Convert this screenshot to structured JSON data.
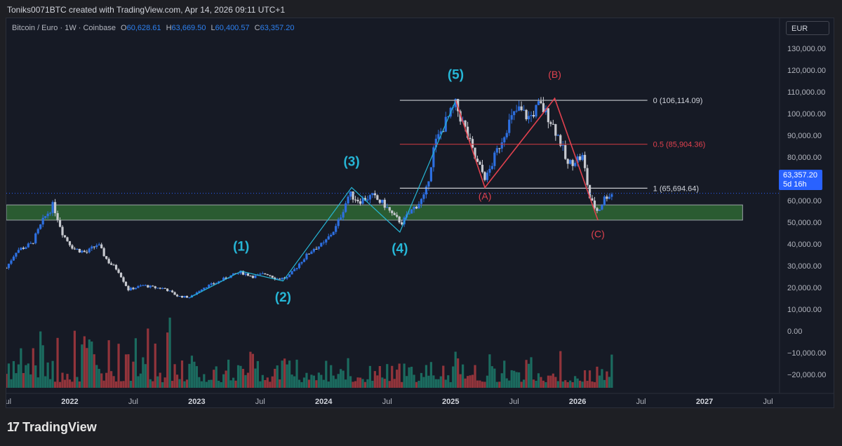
{
  "header": {
    "credit": "Toniks0071BTC created with TradingView.com, Apr 14, 2026 09:11 UTC+1"
  },
  "legend": {
    "symbol": "Bitcoin / Euro · 1W · Coinbase",
    "o_label": "O",
    "o": "60,628.61",
    "h_label": "H",
    "h": "63,669.50",
    "l_label": "L",
    "l": "60,400.57",
    "c_label": "C",
    "c": "63,357.20"
  },
  "currency": "EUR",
  "price_tag": {
    "price": "63,357.20",
    "countdown": "5d 16h"
  },
  "footer": {
    "brand": "TradingView",
    "logo": "17"
  },
  "colors": {
    "up": "#2d6fe0",
    "down": "#c7c9cf",
    "wave": "#26b6d6",
    "corr": "#e0414e",
    "zone": "#2f6b35",
    "vol_up": "#1c7a6a",
    "vol_down": "#a83a3f"
  },
  "chart_data": {
    "type": "candlestick",
    "title": "Bitcoin / Euro · 1W · Coinbase",
    "y_ticks": [
      130000,
      120000,
      110000,
      100000,
      90000,
      80000,
      70000,
      60000,
      50000,
      40000,
      30000,
      20000,
      10000,
      0,
      -10000,
      -20000
    ],
    "y_tick_labels": [
      "130,000.00",
      "120,000.00",
      "110,000.00",
      "100,000.00",
      "90,000.00",
      "80,000.00",
      "70,000.00",
      "60,000.00",
      "50,000.00",
      "40,000.00",
      "30,000.00",
      "20,000.00",
      "10,000.00",
      "0.00",
      "−10,000.00",
      "−20,000.00"
    ],
    "ylim": [
      -25000,
      135000
    ],
    "x_ticks": [
      {
        "label": "Jul",
        "t": 2021.5
      },
      {
        "label": "2022",
        "t": 2022.0
      },
      {
        "label": "Jul",
        "t": 2022.5
      },
      {
        "label": "2023",
        "t": 2023.0
      },
      {
        "label": "Jul",
        "t": 2023.5
      },
      {
        "label": "2024",
        "t": 2024.0
      },
      {
        "label": "Jul",
        "t": 2024.5
      },
      {
        "label": "2025",
        "t": 2025.0
      },
      {
        "label": "Jul",
        "t": 2025.5
      },
      {
        "label": "2026",
        "t": 2026.0
      },
      {
        "label": "Jul",
        "t": 2026.5
      },
      {
        "label": "2027",
        "t": 2027.0
      },
      {
        "label": "Jul",
        "t": 2027.5
      }
    ],
    "xlim": [
      2021.5,
      2027.58
    ],
    "price_path": [
      [
        2021.5,
        29000
      ],
      [
        2021.58,
        37000
      ],
      [
        2021.7,
        40000
      ],
      [
        2021.8,
        52000
      ],
      [
        2021.87,
        58000
      ],
      [
        2021.95,
        44000
      ],
      [
        2022.03,
        38000
      ],
      [
        2022.13,
        36000
      ],
      [
        2022.22,
        40000
      ],
      [
        2022.3,
        32000
      ],
      [
        2022.38,
        28000
      ],
      [
        2022.46,
        19000
      ],
      [
        2022.58,
        21000
      ],
      [
        2022.66,
        20000
      ],
      [
        2022.75,
        19500
      ],
      [
        2022.85,
        16000
      ],
      [
        2022.95,
        15500
      ],
      [
        2023.05,
        20000
      ],
      [
        2023.15,
        22000
      ],
      [
        2023.25,
        25000
      ],
      [
        2023.35,
        27000
      ],
      [
        2023.45,
        25000
      ],
      [
        2023.55,
        26500
      ],
      [
        2023.63,
        24000
      ],
      [
        2023.72,
        24500
      ],
      [
        2023.82,
        32000
      ],
      [
        2023.92,
        38000
      ],
      [
        2024.0,
        40000
      ],
      [
        2024.1,
        48000
      ],
      [
        2024.2,
        63000
      ],
      [
        2024.28,
        60000
      ],
      [
        2024.38,
        62000
      ],
      [
        2024.48,
        58000
      ],
      [
        2024.56,
        52000
      ],
      [
        2024.62,
        50000
      ],
      [
        2024.7,
        56000
      ],
      [
        2024.8,
        62000
      ],
      [
        2024.87,
        85000
      ],
      [
        2024.95,
        95000
      ],
      [
        2025.04,
        104000
      ],
      [
        2025.12,
        92000
      ],
      [
        2025.2,
        78000
      ],
      [
        2025.28,
        70000
      ],
      [
        2025.36,
        82000
      ],
      [
        2025.45,
        95000
      ],
      [
        2025.53,
        102000
      ],
      [
        2025.62,
        98000
      ],
      [
        2025.7,
        104000
      ],
      [
        2025.78,
        98000
      ],
      [
        2025.86,
        88000
      ],
      [
        2025.92,
        76000
      ],
      [
        2025.98,
        79000
      ],
      [
        2026.04,
        80000
      ],
      [
        2026.1,
        60000
      ],
      [
        2026.16,
        55000
      ],
      [
        2026.22,
        62000
      ],
      [
        2026.28,
        63357
      ]
    ],
    "support_zone": {
      "from_t": 2021.5,
      "to_t": 2027.3,
      "low": 51000,
      "high": 58000
    },
    "fib_levels": [
      {
        "label": "0 (106,114.09)",
        "value": 106114.09,
        "from_t": 2024.6,
        "to_t": 2026.55
      },
      {
        "label": "0.5 (85,904.36)",
        "value": 85904.36,
        "from_t": 2024.6,
        "to_t": 2026.55
      },
      {
        "label": "1 (65,694.64)",
        "value": 65694.64,
        "from_t": 2024.6,
        "to_t": 2026.55
      }
    ],
    "current_price": 63357.2,
    "impulse_wave": [
      [
        2022.95,
        15500
      ],
      [
        2023.35,
        27500
      ],
      [
        2023.68,
        23000
      ],
      [
        2024.22,
        66000
      ],
      [
        2024.6,
        45500
      ],
      [
        2025.04,
        106000
      ]
    ],
    "impulse_labels": [
      {
        "text": "(1)",
        "t": 2023.35,
        "v": 37000
      },
      {
        "text": "(2)",
        "t": 2023.68,
        "v": 13500
      },
      {
        "text": "(3)",
        "t": 2024.22,
        "v": 76000
      },
      {
        "text": "(4)",
        "t": 2024.6,
        "v": 36000
      },
      {
        "text": "(5)",
        "t": 2025.04,
        "v": 116000
      }
    ],
    "correction_wave": [
      [
        2025.04,
        106000
      ],
      [
        2025.27,
        66000
      ],
      [
        2025.82,
        107000
      ],
      [
        2026.16,
        51000
      ]
    ],
    "correction_labels": [
      {
        "text": "(A)",
        "t": 2025.27,
        "v": 60500
      },
      {
        "text": "(B)",
        "t": 2025.82,
        "v": 116500
      },
      {
        "text": "(C)",
        "t": 2026.16,
        "v": 43000
      }
    ]
  }
}
